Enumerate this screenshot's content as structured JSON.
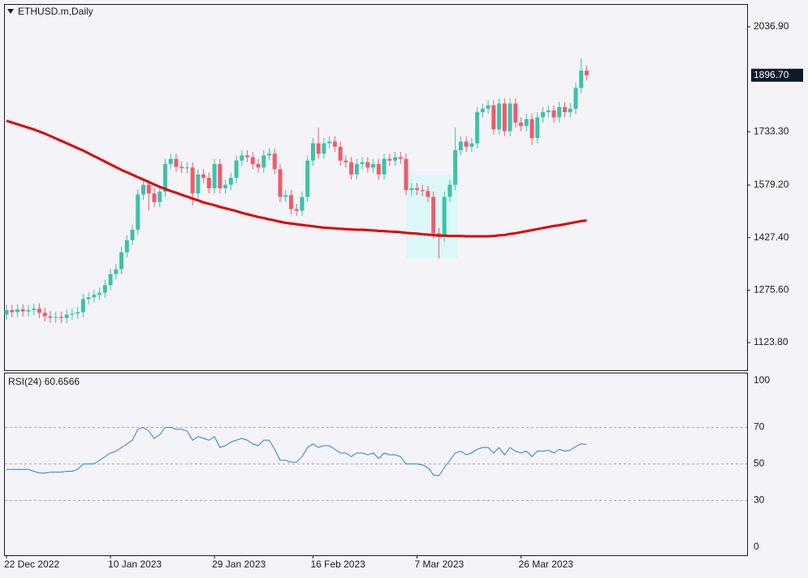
{
  "chart_data": [
    {
      "type": "candlestick",
      "title": "ETHUSD.m,Daily",
      "categories": [
        "22 Dec 2022",
        null,
        null,
        null,
        null,
        null,
        null,
        null,
        null,
        null,
        null,
        null,
        null,
        null,
        null,
        null,
        null,
        null,
        null,
        "10 Jan 2023",
        null,
        null,
        null,
        null,
        null,
        null,
        null,
        null,
        null,
        null,
        null,
        null,
        null,
        null,
        null,
        null,
        null,
        null,
        "29 Jan 2023",
        null,
        null,
        null,
        null,
        null,
        null,
        null,
        null,
        null,
        null,
        null,
        null,
        null,
        null,
        null,
        null,
        null,
        "16 Feb 2023",
        null,
        null,
        null,
        null,
        null,
        null,
        null,
        null,
        null,
        null,
        null,
        null,
        null,
        null,
        null,
        null,
        null,
        null,
        "7 Mar 2023",
        null,
        null,
        null,
        null,
        null,
        null,
        null,
        null,
        null,
        null,
        null,
        null,
        null,
        null,
        null,
        null,
        null,
        null,
        "26 Mar 2023",
        null,
        null,
        null,
        null,
        null,
        null,
        null,
        null,
        null,
        null,
        null,
        null
      ],
      "open": [
        1205,
        1218,
        1212,
        1220,
        1214,
        1218,
        1222,
        1210,
        1200,
        1196,
        1198,
        1195,
        1205,
        1208,
        1212,
        1250,
        1255,
        1262,
        1268,
        1290,
        1322,
        1336,
        1385,
        1420,
        1450,
        1552,
        1580,
        1555,
        1530,
        1560,
        1640,
        1655,
        1632,
        1628,
        1630,
        1555,
        1610,
        1600,
        1570,
        1640,
        1570,
        1580,
        1600,
        1650,
        1665,
        1660,
        1640,
        1630,
        1665,
        1670,
        1625,
        1545,
        1550,
        1510,
        1505,
        1545,
        1650,
        1700,
        1670,
        1700,
        1705,
        1690,
        1650,
        1645,
        1610,
        1640,
        1645,
        1630,
        1640,
        1610,
        1655,
        1650,
        1660,
        1655,
        1565,
        1570,
        1565,
        1562,
        1545,
        1440,
        1430,
        1545,
        1580,
        1680,
        1705,
        1690,
        1700,
        1790,
        1800,
        1810,
        1740,
        1815,
        1735,
        1815,
        1760,
        1750,
        1770,
        1715,
        1775,
        1790,
        1795,
        1775,
        1805,
        1790,
        1800,
        1860,
        1910
      ],
      "high": [
        1233,
        1233,
        1235,
        1235,
        1233,
        1237,
        1237,
        1225,
        1215,
        1213,
        1213,
        1220,
        1223,
        1227,
        1265,
        1270,
        1277,
        1283,
        1305,
        1337,
        1351,
        1400,
        1435,
        1465,
        1567,
        1595,
        1595,
        1570,
        1575,
        1655,
        1670,
        1670,
        1647,
        1645,
        1645,
        1625,
        1625,
        1615,
        1655,
        1655,
        1595,
        1615,
        1665,
        1680,
        1680,
        1675,
        1655,
        1680,
        1685,
        1685,
        1640,
        1565,
        1565,
        1525,
        1560,
        1665,
        1715,
        1745,
        1715,
        1720,
        1720,
        1705,
        1665,
        1660,
        1655,
        1660,
        1660,
        1655,
        1655,
        1670,
        1670,
        1675,
        1675,
        1670,
        1585,
        1585,
        1580,
        1577,
        1560,
        1455,
        1560,
        1595,
        1745,
        1720,
        1720,
        1715,
        1805,
        1815,
        1825,
        1825,
        1830,
        1830,
        1830,
        1830,
        1775,
        1785,
        1785,
        1790,
        1805,
        1810,
        1810,
        1820,
        1820,
        1815,
        1875,
        1945,
        1925
      ],
      "low": [
        1190,
        1197,
        1197,
        1199,
        1199,
        1203,
        1195,
        1185,
        1181,
        1181,
        1180,
        1180,
        1190,
        1193,
        1197,
        1235,
        1240,
        1247,
        1253,
        1275,
        1307,
        1321,
        1370,
        1405,
        1435,
        1537,
        1505,
        1515,
        1515,
        1545,
        1625,
        1617,
        1613,
        1613,
        1520,
        1540,
        1585,
        1555,
        1555,
        1555,
        1555,
        1565,
        1585,
        1635,
        1645,
        1625,
        1615,
        1615,
        1650,
        1610,
        1530,
        1530,
        1495,
        1490,
        1490,
        1530,
        1635,
        1655,
        1655,
        1685,
        1675,
        1635,
        1630,
        1595,
        1595,
        1625,
        1615,
        1615,
        1595,
        1595,
        1635,
        1635,
        1640,
        1550,
        1550,
        1550,
        1547,
        1530,
        1425,
        1367,
        1415,
        1530,
        1565,
        1665,
        1675,
        1675,
        1685,
        1775,
        1785,
        1725,
        1725,
        1720,
        1720,
        1745,
        1735,
        1735,
        1695,
        1700,
        1760,
        1775,
        1760,
        1760,
        1775,
        1775,
        1785,
        1845,
        1881.7
      ],
      "close": [
        1218,
        1212,
        1220,
        1214,
        1218,
        1222,
        1210,
        1200,
        1196,
        1198,
        1195,
        1205,
        1208,
        1212,
        1250,
        1255,
        1262,
        1268,
        1290,
        1322,
        1336,
        1385,
        1420,
        1450,
        1552,
        1580,
        1555,
        1530,
        1560,
        1640,
        1655,
        1632,
        1628,
        1630,
        1555,
        1610,
        1600,
        1570,
        1640,
        1570,
        1580,
        1600,
        1650,
        1665,
        1660,
        1640,
        1630,
        1665,
        1670,
        1625,
        1545,
        1550,
        1510,
        1505,
        1545,
        1650,
        1700,
        1670,
        1700,
        1705,
        1690,
        1650,
        1645,
        1610,
        1640,
        1645,
        1630,
        1640,
        1610,
        1655,
        1650,
        1660,
        1655,
        1565,
        1570,
        1565,
        1562,
        1545,
        1440,
        1430,
        1545,
        1580,
        1680,
        1705,
        1690,
        1700,
        1790,
        1800,
        1810,
        1740,
        1815,
        1735,
        1815,
        1760,
        1750,
        1770,
        1715,
        1775,
        1790,
        1795,
        1775,
        1805,
        1790,
        1800,
        1860,
        1910,
        1896.7
      ],
      "up_color": "#3cc2a8",
      "down_color": "#ee5b6b",
      "ma": {
        "color": "#e00000",
        "values": [
          1765,
          1760,
          1755,
          1750,
          1745,
          1740,
          1734,
          1728,
          1721,
          1714,
          1707,
          1700,
          1693,
          1686,
          1679,
          1671,
          1663,
          1655,
          1647,
          1639,
          1631,
          1623,
          1616,
          1609,
          1602,
          1595,
          1588,
          1581,
          1574,
          1568,
          1562,
          1557,
          1551,
          1546,
          1540,
          1535,
          1529,
          1525,
          1521,
          1516,
          1512,
          1508,
          1504,
          1499,
          1495,
          1491,
          1487,
          1484,
          1480,
          1477,
          1473,
          1470,
          1468,
          1466,
          1464,
          1462,
          1460,
          1458,
          1456,
          1455,
          1454,
          1453,
          1452,
          1451,
          1450,
          1450,
          1449,
          1448,
          1447,
          1446,
          1445,
          1444,
          1443,
          1441,
          1440,
          1439,
          1437,
          1436,
          1435,
          1433,
          1433,
          1432,
          1432,
          1432,
          1431,
          1431,
          1431,
          1431,
          1431,
          1432,
          1434,
          1435,
          1438,
          1440,
          1443,
          1446,
          1449,
          1452,
          1455,
          1458,
          1461,
          1463,
          1466,
          1469,
          1472,
          1475,
          1477
        ]
      },
      "last_price": {
        "value": 1896.7,
        "label": "1896.70"
      },
      "ylim": [
        1044.2,
        2100.1
      ],
      "yticks": [
        {
          "value": 2036.9,
          "label": "2036.90"
        },
        {
          "value": 1733.3,
          "label": "1733.30"
        },
        {
          "value": 1579.2,
          "label": "1579.20"
        },
        {
          "value": 1427.4,
          "label": "1427.40"
        },
        {
          "value": 1275.6,
          "label": "1275.60"
        },
        {
          "value": 1123.8,
          "label": "1123.80"
        }
      ]
    },
    {
      "type": "line",
      "title": "RSI(24) 60.6566",
      "color": "#2a7fd4",
      "values": [
        47,
        47,
        47,
        47,
        47,
        46,
        45,
        45,
        45.5,
        45.5,
        45.5,
        46,
        46,
        47,
        50,
        50,
        50,
        52,
        54,
        56,
        57,
        59,
        61,
        63,
        69,
        70,
        68,
        64,
        66,
        70,
        70,
        69,
        69,
        68,
        63,
        65,
        64,
        63,
        65,
        59,
        60,
        62,
        63,
        64,
        63,
        61,
        60,
        63,
        63,
        58,
        52,
        52,
        51,
        51,
        54,
        59,
        61,
        59,
        60,
        60,
        58,
        56,
        56,
        54,
        56,
        56,
        55,
        56,
        53,
        56,
        55,
        55,
        54,
        50,
        50,
        50,
        49.5,
        48,
        44,
        43.5,
        48,
        52,
        56,
        57,
        55,
        56,
        58,
        59,
        59,
        56,
        59,
        55,
        59,
        57,
        56,
        57,
        54,
        57,
        57,
        57.5,
        56,
        58,
        57,
        57.5,
        59.5,
        61,
        60.6566
      ],
      "ylim": [
        0,
        100
      ],
      "yticks": [
        100,
        70,
        50,
        30,
        0
      ],
      "grid": true
    }
  ]
}
